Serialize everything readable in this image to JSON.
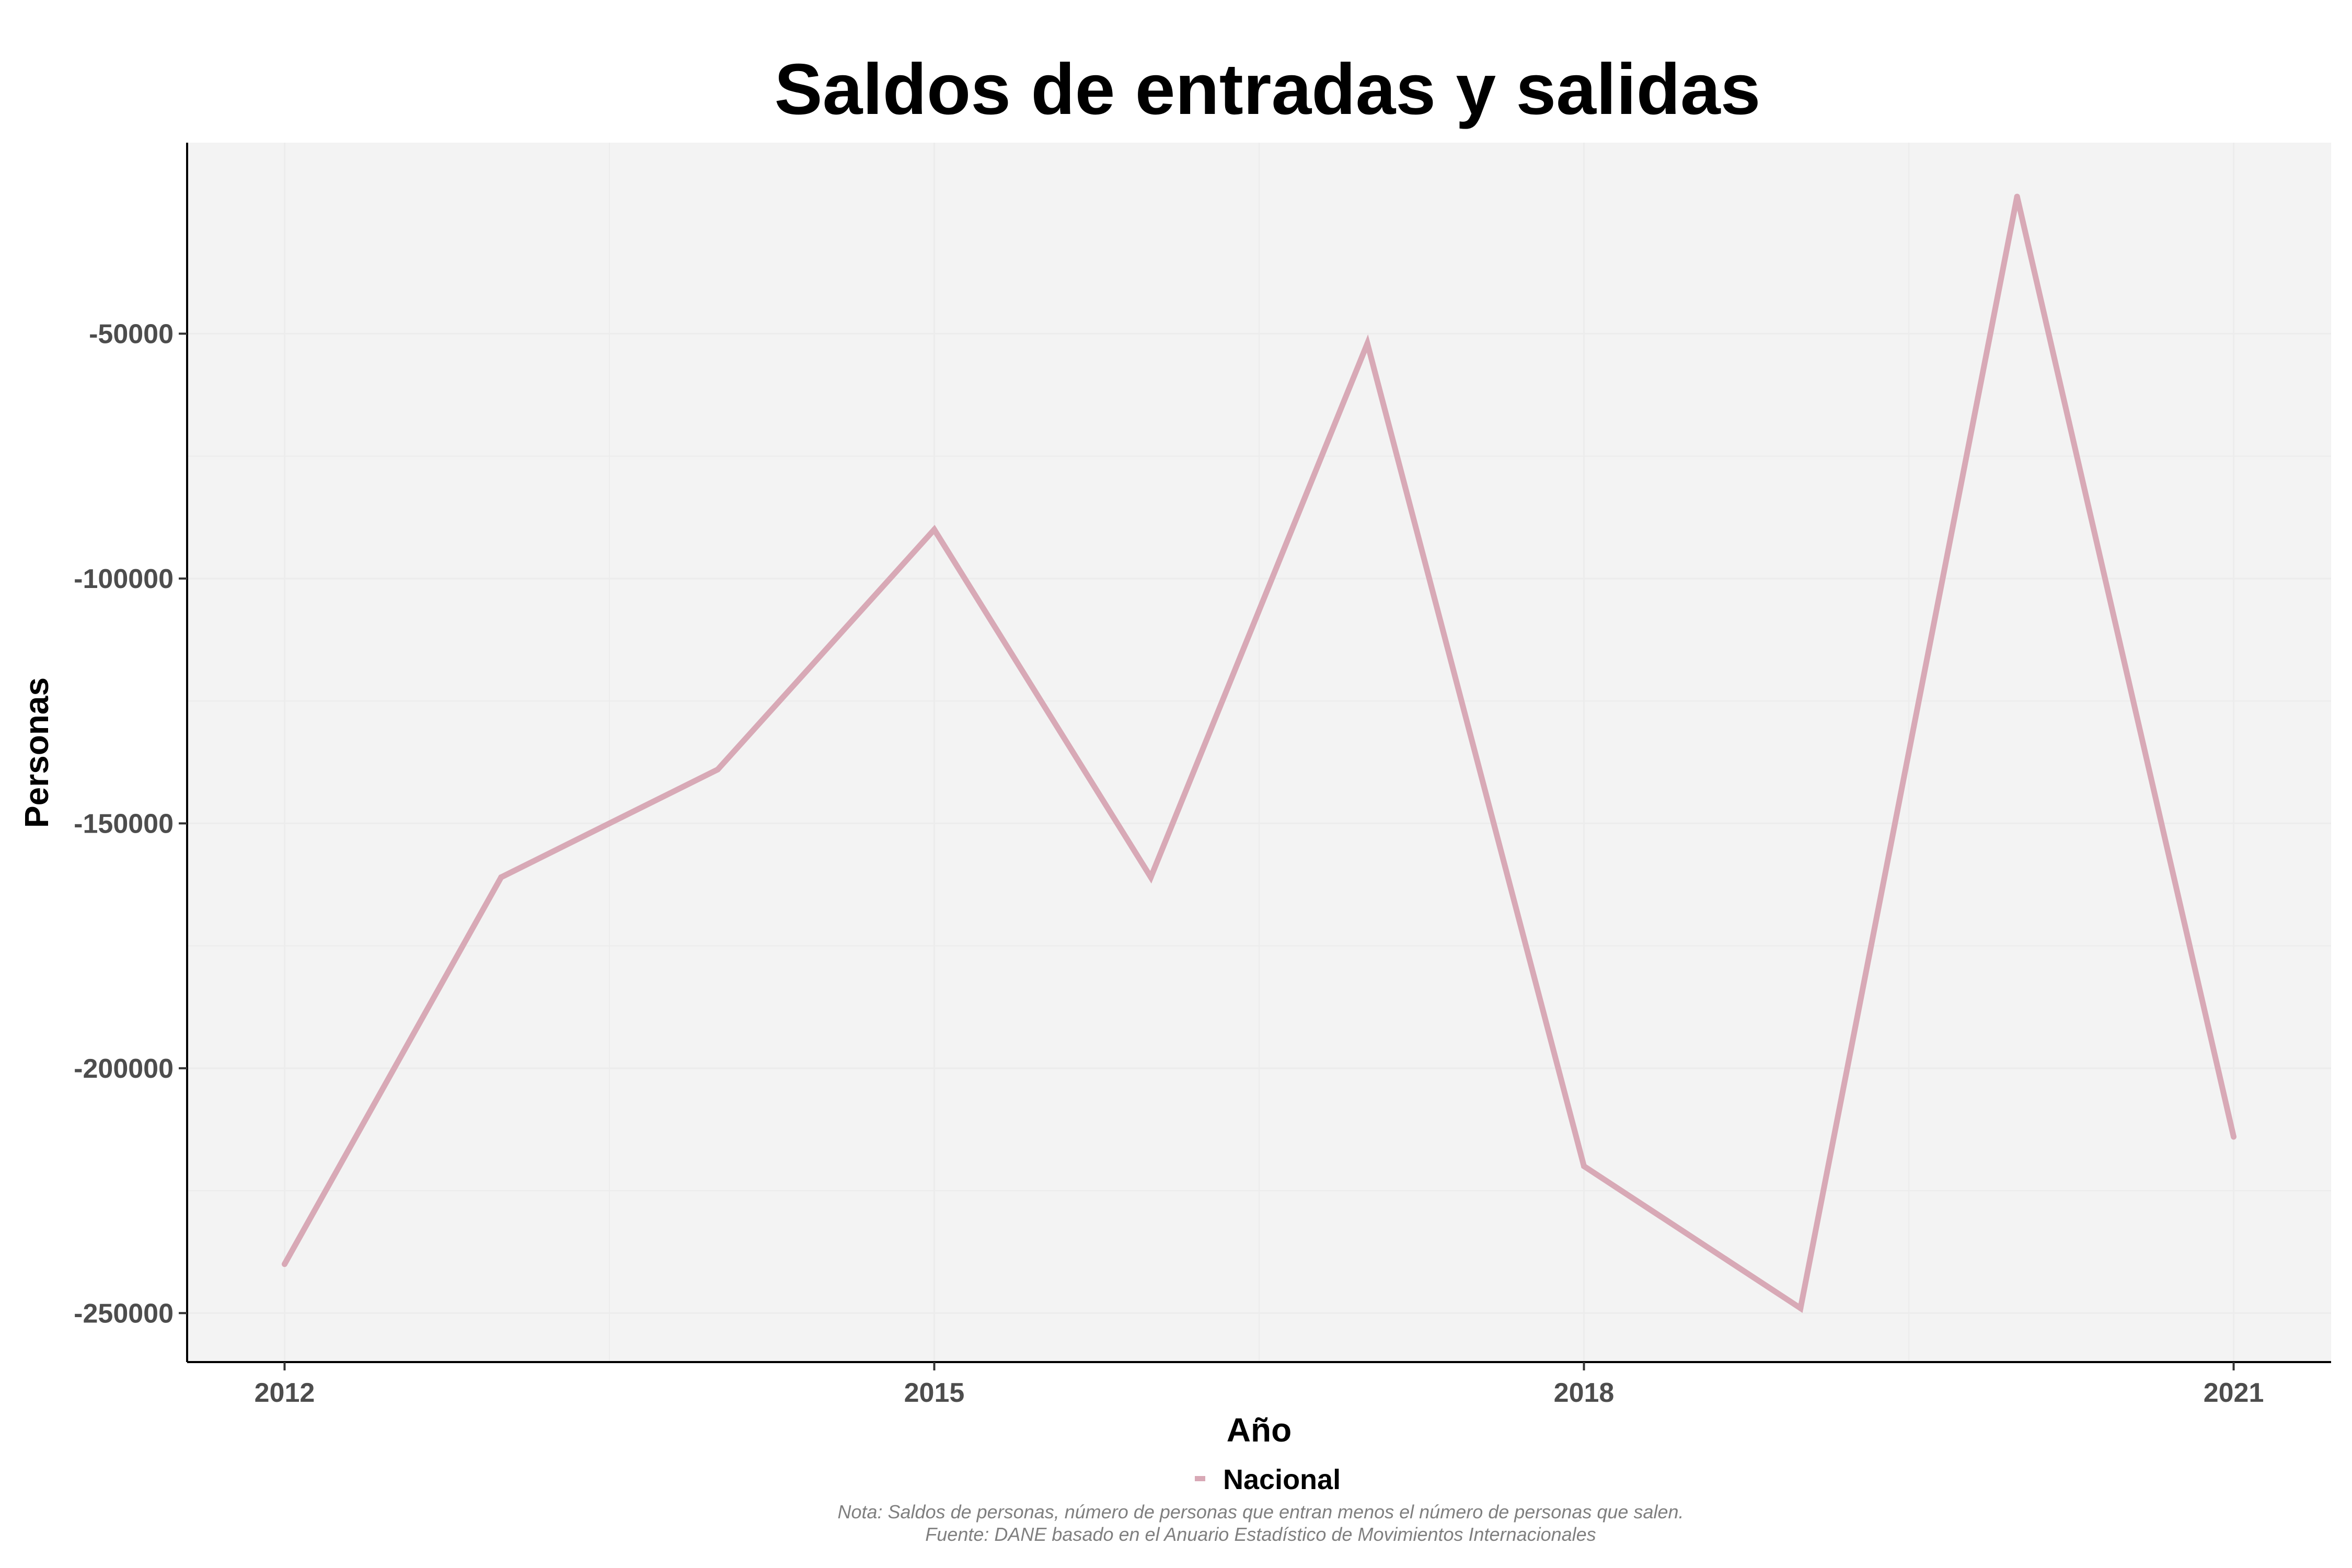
{
  "chart_data": {
    "type": "line",
    "title": "Saldos de entradas y salidas",
    "xlabel": "Año",
    "ylabel": "Personas",
    "x": [
      2012,
      2013,
      2014,
      2015,
      2016,
      2017,
      2018,
      2019,
      2020,
      2021
    ],
    "x_ticks": [
      "2012",
      "2015",
      "2018",
      "2021"
    ],
    "y_ticks": [
      "-50000",
      "-100000",
      "-150000",
      "-200000",
      "-250000"
    ],
    "xlim": [
      2011.55,
      2021.45
    ],
    "ylim": [
      -260000,
      -11000
    ],
    "grid": true,
    "legend_position": "bottom",
    "series": [
      {
        "name": "Nacional",
        "color": "#d8a9b6",
        "values": [
          -240000,
          -161000,
          -139000,
          -90000,
          -161000,
          -52000,
          -220000,
          -249000,
          -22000,
          -214000
        ]
      }
    ],
    "caption_lines": [
      "Nota: Saldos de personas, número de personas que entran menos el número de personas que salen.",
      "Fuente: DANE basado en el Anuario Estadístico de Movimientos Internacionales"
    ],
    "colors": {
      "panel_background": "#f3f3f3",
      "grid": "#ececec",
      "axis_line": "#000000"
    }
  }
}
